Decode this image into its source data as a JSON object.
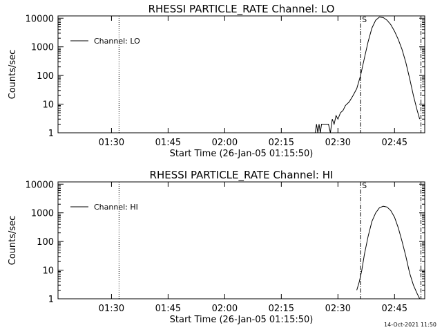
{
  "footer": {
    "timestamp": "14-Oct-2021 11:50"
  },
  "chart_data": [
    {
      "type": "line",
      "title": "RHESSI PARTICLE_RATE Channel: LO",
      "xlabel": "Start Time (26-Jan-05 01:15:50)",
      "ylabel": "Counts/sec",
      "yscale": "log",
      "ylim": [
        1,
        12000
      ],
      "xlim": [
        "01:15:50",
        "02:53:00"
      ],
      "x_ticks": [
        "01:30",
        "01:45",
        "02:00",
        "02:15",
        "02:30",
        "02:45"
      ],
      "y_ticks": [
        "1",
        "10",
        "100",
        "1000",
        "10000"
      ],
      "legend": {
        "position": "top-left",
        "entries": [
          "Channel: LO"
        ]
      },
      "markers": [
        {
          "time": "01:32:00",
          "style": "dotted"
        },
        {
          "time": "02:36:00",
          "style": "dash-dot",
          "label": "S"
        },
        {
          "time": "02:52:00",
          "style": "dash-dot"
        }
      ],
      "series": [
        {
          "name": "Channel: LO",
          "x": [
            "02:24:00",
            "02:24:20",
            "02:24:40",
            "02:25:00",
            "02:25:20",
            "02:25:40",
            "02:26:00",
            "02:26:30",
            "02:27:00",
            "02:27:30",
            "02:28:00",
            "02:28:30",
            "02:29:00",
            "02:29:30",
            "02:30:00",
            "02:30:40",
            "02:31:20",
            "02:32:00",
            "02:33:00",
            "02:34:00",
            "02:35:00",
            "02:36:00",
            "02:37:00",
            "02:38:00",
            "02:39:00",
            "02:40:00",
            "02:41:00",
            "02:42:00",
            "02:43:00",
            "02:44:00",
            "02:45:00",
            "02:46:00",
            "02:47:00",
            "02:48:00",
            "02:49:00",
            "02:50:00",
            "02:51:00",
            "02:51:40"
          ],
          "values": [
            1,
            2,
            1,
            2,
            1,
            2,
            2,
            2,
            2,
            2,
            1,
            3,
            2,
            4,
            3,
            5,
            6,
            9,
            12,
            20,
            35,
            100,
            400,
            1500,
            4500,
            8500,
            11000,
            10500,
            8500,
            6000,
            3500,
            1800,
            800,
            280,
            80,
            20,
            6,
            3
          ]
        }
      ]
    },
    {
      "type": "line",
      "title": "RHESSI PARTICLE_RATE Channel: HI",
      "xlabel": "Start Time (26-Jan-05 01:15:50)",
      "ylabel": "Counts/sec",
      "yscale": "log",
      "ylim": [
        1,
        12000
      ],
      "xlim": [
        "01:15:50",
        "02:53:00"
      ],
      "x_ticks": [
        "01:30",
        "01:45",
        "02:00",
        "02:15",
        "02:30",
        "02:45"
      ],
      "y_ticks": [
        "1",
        "10",
        "100",
        "1000",
        "10000"
      ],
      "legend": {
        "position": "top-left",
        "entries": [
          "Channel: HI"
        ]
      },
      "markers": [
        {
          "time": "01:32:00",
          "style": "dotted"
        },
        {
          "time": "02:36:00",
          "style": "dash-dot",
          "label": "S"
        },
        {
          "time": "02:52:00",
          "style": "dash-dot"
        }
      ],
      "series": [
        {
          "name": "Channel: HI",
          "x": [
            "02:35:00",
            "02:35:40",
            "02:36:20",
            "02:37:00",
            "02:38:00",
            "02:39:00",
            "02:40:00",
            "02:41:00",
            "02:42:00",
            "02:43:00",
            "02:44:00",
            "02:45:00",
            "02:46:00",
            "02:47:00",
            "02:48:00",
            "02:49:00",
            "02:50:00",
            "02:51:00",
            "02:51:40"
          ],
          "values": [
            2,
            4,
            10,
            35,
            150,
            500,
            1000,
            1500,
            1700,
            1600,
            1200,
            700,
            300,
            100,
            30,
            8,
            3,
            1.5,
            1
          ]
        }
      ]
    }
  ]
}
